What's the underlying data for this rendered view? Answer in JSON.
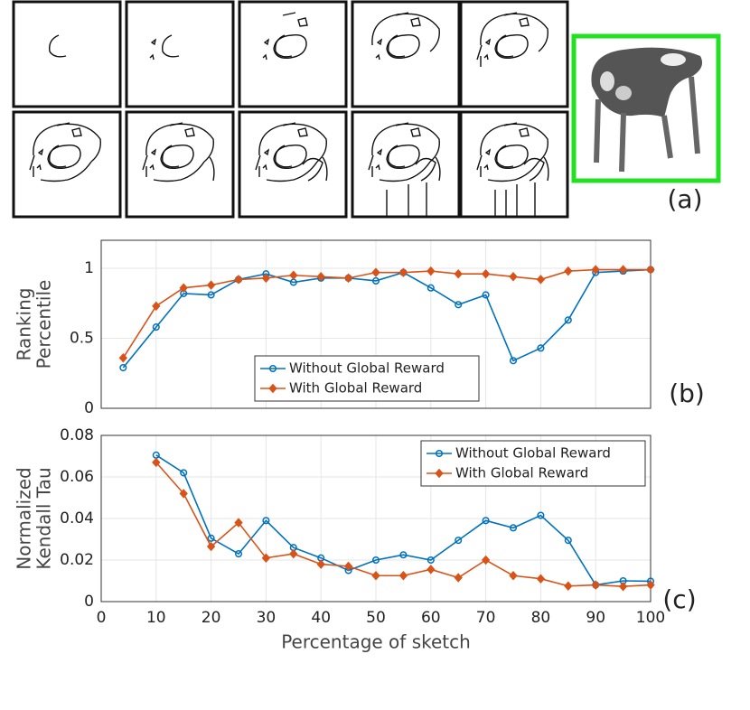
{
  "figure_a": {
    "label": "(a)"
  },
  "chart_data": [
    {
      "type": "line",
      "panel_label": "(b)",
      "y_label": [
        "Ranking",
        "Percentile"
      ],
      "x": [
        4,
        10,
        15,
        20,
        25,
        30,
        35,
        40,
        45,
        50,
        55,
        60,
        65,
        70,
        75,
        80,
        85,
        90,
        95,
        100
      ],
      "xlim": [
        0,
        100
      ],
      "ylim": [
        0,
        1.2
      ],
      "yticks": [
        0,
        0.5,
        1
      ],
      "grid": true,
      "legend_position": "lower center",
      "series": [
        {
          "name": "Without Global Reward",
          "color": "#0072bd",
          "marker": "circle",
          "values": [
            0.29,
            0.58,
            0.82,
            0.81,
            0.92,
            0.96,
            0.9,
            0.93,
            0.93,
            0.91,
            0.97,
            0.86,
            0.74,
            0.81,
            0.34,
            0.43,
            0.63,
            0.97,
            0.98,
            0.99
          ]
        },
        {
          "name": "With Global Reward",
          "color": "#d95319",
          "marker": "diamond",
          "values": [
            0.36,
            0.73,
            0.86,
            0.88,
            0.92,
            0.93,
            0.95,
            0.94,
            0.93,
            0.97,
            0.97,
            0.98,
            0.96,
            0.96,
            0.94,
            0.92,
            0.98,
            0.99,
            0.99,
            0.99
          ]
        }
      ]
    },
    {
      "type": "line",
      "panel_label": "(c)",
      "y_label": [
        "Normalized",
        "Kendall Tau"
      ],
      "x_label": "Percentage of sketch",
      "x": [
        10,
        15,
        20,
        25,
        30,
        35,
        40,
        45,
        50,
        55,
        60,
        65,
        70,
        75,
        80,
        85,
        90,
        95,
        100
      ],
      "xlim": [
        0,
        100
      ],
      "xticks": [
        0,
        10,
        20,
        30,
        40,
        50,
        60,
        70,
        80,
        90,
        100
      ],
      "ylim": [
        0,
        0.08
      ],
      "yticks": [
        0,
        0.02,
        0.04,
        0.06,
        0.08
      ],
      "grid": true,
      "legend_position": "upper right",
      "series": [
        {
          "name": "Without Global Reward",
          "color": "#0072bd",
          "marker": "circle",
          "values": [
            0.0705,
            0.062,
            0.0305,
            0.023,
            0.039,
            0.026,
            0.021,
            0.015,
            0.02,
            0.0225,
            0.02,
            0.0295,
            0.039,
            0.0355,
            0.0415,
            0.0295,
            0.008,
            0.01,
            0.0098
          ]
        },
        {
          "name": "With Global Reward",
          "color": "#d95319",
          "marker": "diamond",
          "values": [
            0.067,
            0.052,
            0.0265,
            0.038,
            0.021,
            0.023,
            0.018,
            0.017,
            0.0125,
            0.0125,
            0.0155,
            0.0115,
            0.02,
            0.0125,
            0.011,
            0.0075,
            0.008,
            0.0073,
            0.008
          ]
        }
      ]
    }
  ]
}
